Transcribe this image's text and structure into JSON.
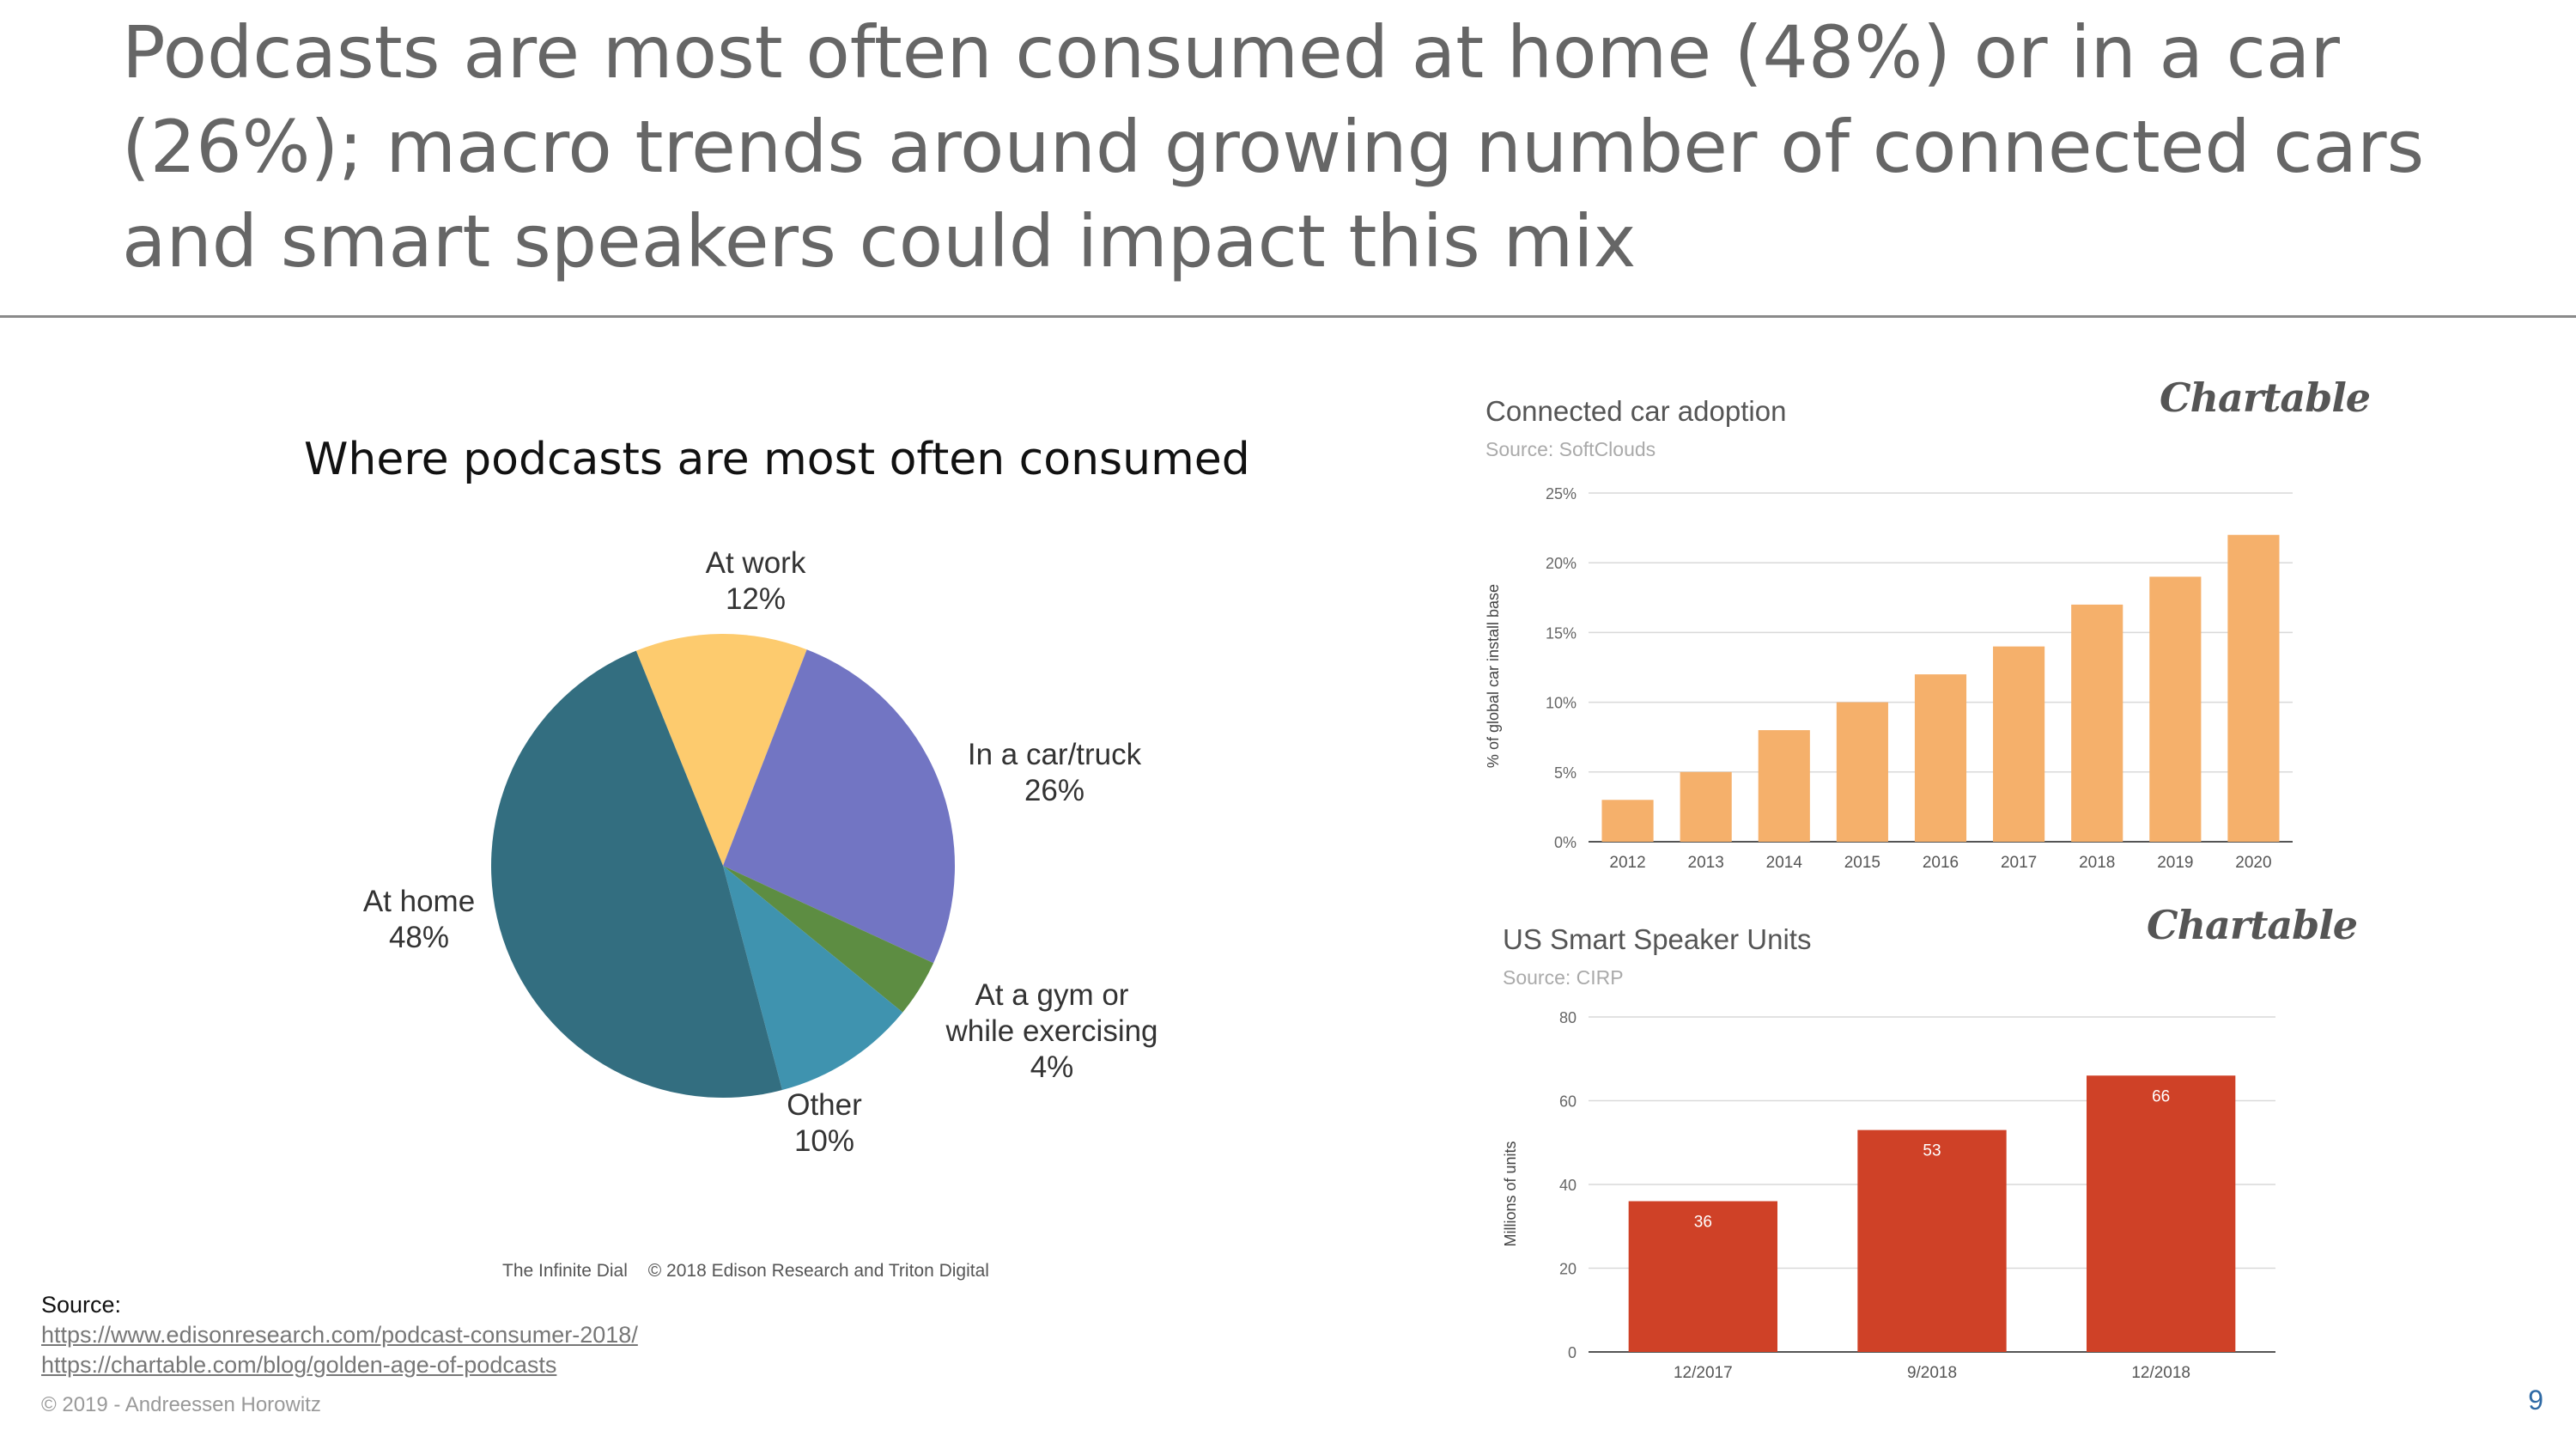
{
  "slide": {
    "title": "Podcasts are most often consumed at home (48%) or in a car (26%); macro trends around growing number of connected cars and smart speakers could impact this mix",
    "page_number": "9",
    "copyright": "© 2019 - Andreessen Horowitz"
  },
  "sources": {
    "label": "Source:",
    "links": [
      "https://www.edisonresearch.com/podcast-consumer-2018/",
      "https://chartable.com/blog/golden-age-of-podcasts"
    ]
  },
  "pie_credit": {
    "left": "The Infinite Dial",
    "right": "© 2018 Edison Research and Triton Digital"
  },
  "car_chart_meta": {
    "brand": "Chartable",
    "title": "Connected car adoption",
    "source": "Source: SoftClouds"
  },
  "speaker_chart_meta": {
    "brand": "Chartable",
    "title": "US Smart Speaker Units",
    "source": "Source: CIRP"
  },
  "chart_data": [
    {
      "type": "pie",
      "title": "Where podcasts are most often consumed",
      "slices": [
        {
          "label": "At work",
          "value": 12,
          "value_label": "12%",
          "color": "#fdcb6e"
        },
        {
          "label": "In a car/truck",
          "value": 26,
          "value_label": "26%",
          "color": "#7275c3"
        },
        {
          "label": "At a gym or while exercising",
          "label_lines": [
            "At a gym or",
            "while exercising"
          ],
          "value": 4,
          "value_label": "4%",
          "color": "#5d8d42"
        },
        {
          "label": "Other",
          "value": 10,
          "value_label": "10%",
          "color": "#3f93af"
        },
        {
          "label": "At home",
          "value": 48,
          "value_label": "48%",
          "color": "#336e80"
        }
      ]
    },
    {
      "type": "bar",
      "title": "Connected car adoption",
      "categories": [
        "2012",
        "2013",
        "2014",
        "2015",
        "2016",
        "2017",
        "2018",
        "2019",
        "2020"
      ],
      "values": [
        3,
        5,
        8,
        10,
        12,
        14,
        17,
        19,
        22
      ],
      "ylabel": "% of global car install base",
      "ylim": [
        0,
        25
      ],
      "yticks": [
        0,
        5,
        10,
        15,
        20,
        25
      ],
      "ytick_labels": [
        "0%",
        "5%",
        "10%",
        "15%",
        "20%",
        "25%"
      ],
      "color": "#f5b06b",
      "grid": true
    },
    {
      "type": "bar",
      "title": "US Smart Speaker Units",
      "categories": [
        "12/2017",
        "9/2018",
        "12/2018"
      ],
      "values": [
        36,
        53,
        66
      ],
      "data_labels": [
        "36",
        "53",
        "66"
      ],
      "ylabel": "Millions of units",
      "ylim": [
        0,
        80
      ],
      "yticks": [
        0,
        20,
        40,
        60,
        80
      ],
      "ytick_labels": [
        "0",
        "20",
        "40",
        "60",
        "80"
      ],
      "color": "#cf4127",
      "grid": true
    }
  ]
}
